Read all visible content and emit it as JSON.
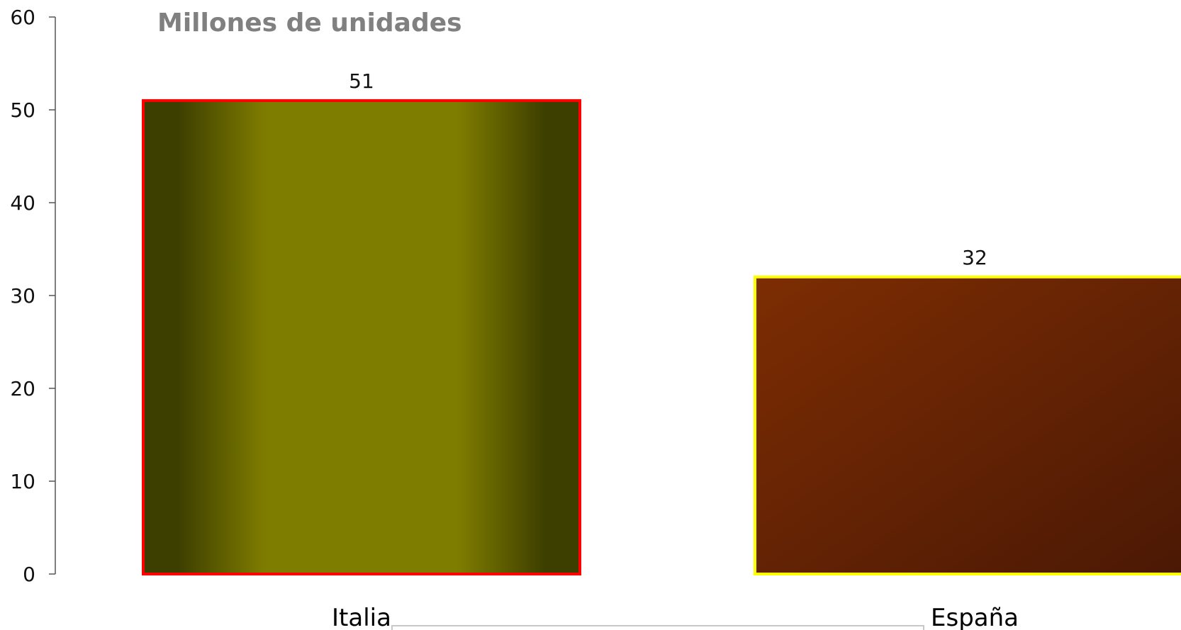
{
  "chart_data": {
    "type": "bar",
    "title": "Millones de unidades",
    "categories": [
      "Italia",
      "España"
    ],
    "values": [
      51,
      32
    ],
    "data_labels": [
      "51",
      "32"
    ],
    "ylim": [
      0,
      60
    ],
    "yticks": [
      0,
      10,
      20,
      30,
      40,
      50,
      60
    ],
    "ytick_labels": [
      "0",
      "10",
      "20",
      "30",
      "40",
      "50",
      "60"
    ],
    "xlabel": "",
    "ylabel": "",
    "grid": false,
    "legend": "none",
    "colors": {
      "title": "#808080",
      "axis": "#555555",
      "bars": [
        {
          "fill_edge": "#3d3f00",
          "fill_center": "#7f7d00",
          "border": "#ff0000"
        },
        {
          "fill_start": "#7d2d03",
          "fill_end": "#4a1804",
          "border": "#ffff00"
        }
      ],
      "bottom_strip": "#c8c8c8"
    }
  }
}
